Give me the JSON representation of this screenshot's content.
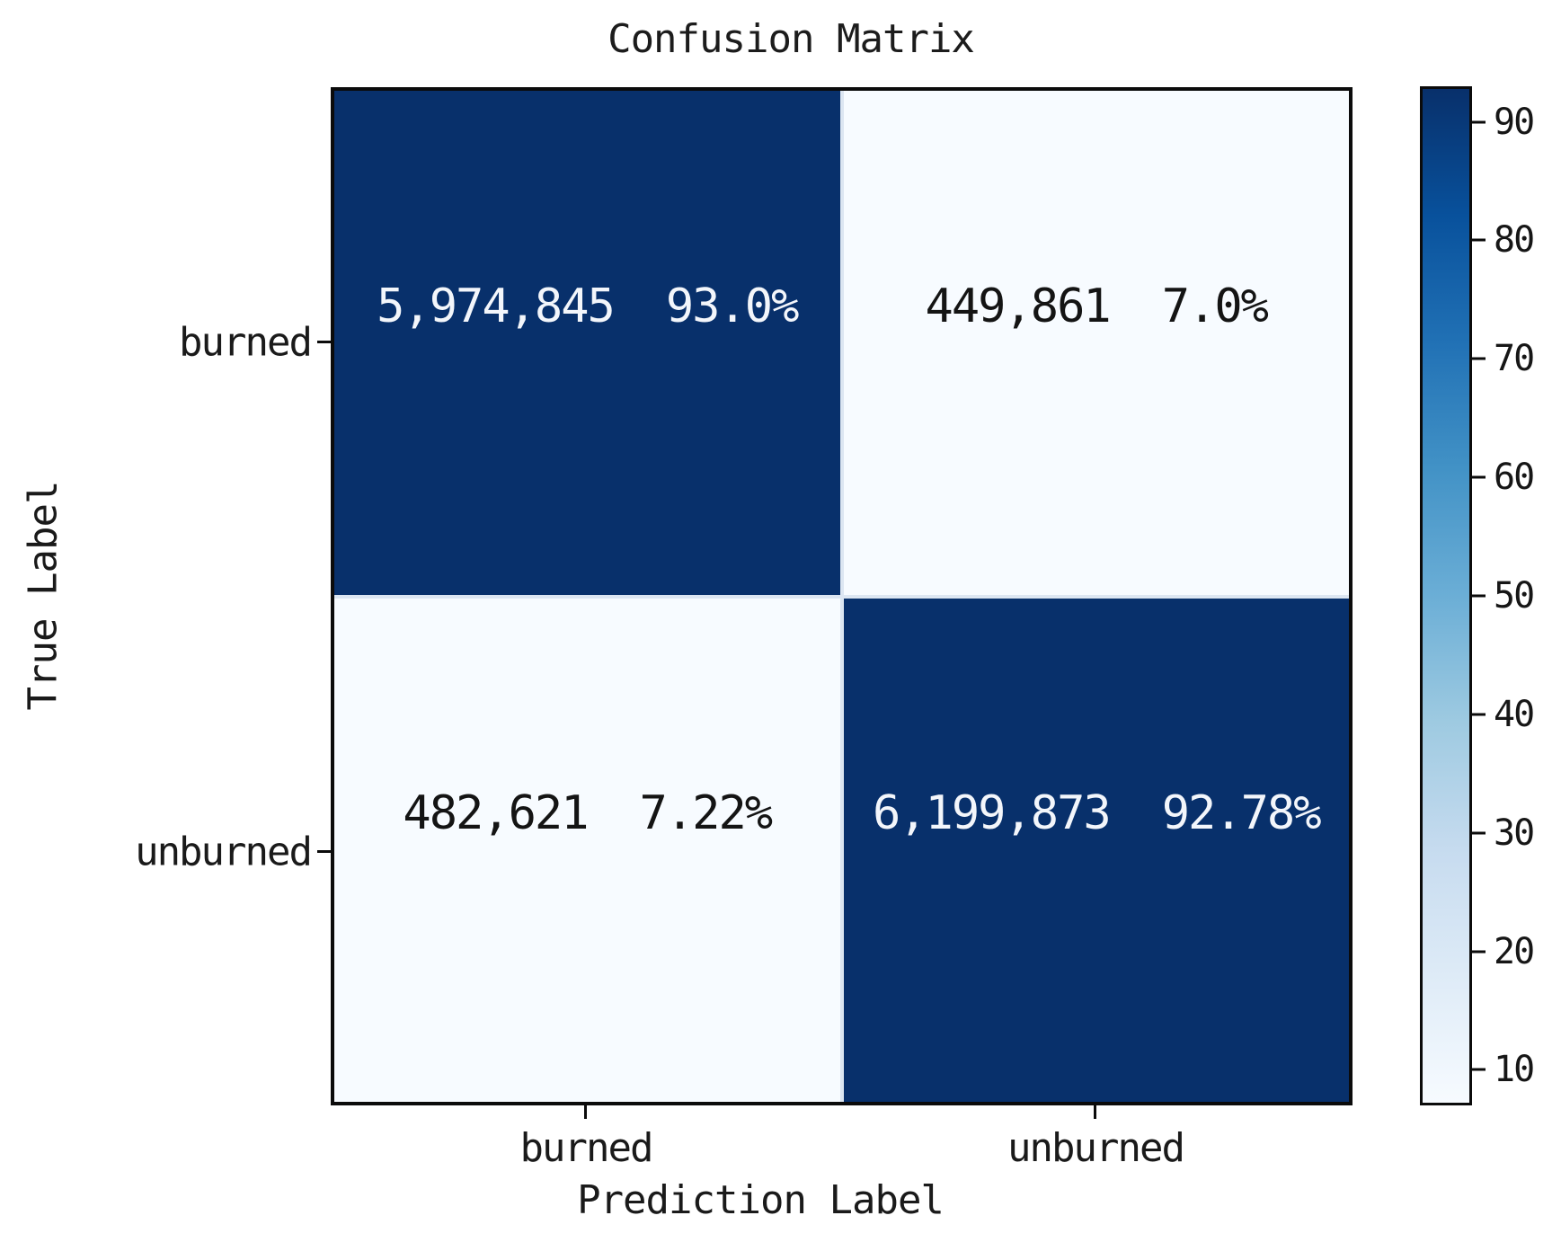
{
  "title": "Confusion Matrix",
  "axes": {
    "x_label": "Prediction Label",
    "y_label": "True Label"
  },
  "chart_data": {
    "type": "heatmap",
    "title": "Confusion Matrix",
    "xlabel": "Prediction Label",
    "ylabel": "True Label",
    "x_categories": [
      "burned",
      "unburned"
    ],
    "y_categories": [
      "burned",
      "unburned"
    ],
    "cells": [
      {
        "row": "burned",
        "col": "burned",
        "count": "5,974,845",
        "percent": "93.0%",
        "value": 93.0
      },
      {
        "row": "burned",
        "col": "unburned",
        "count": "449,861",
        "percent": "7.0%",
        "value": 7.0
      },
      {
        "row": "unburned",
        "col": "burned",
        "count": "482,621",
        "percent": "7.22%",
        "value": 7.22
      },
      {
        "row": "unburned",
        "col": "unburned",
        "count": "6,199,873",
        "percent": "92.78%",
        "value": 92.78
      }
    ],
    "colormap": "Blues",
    "colorbar": {
      "ticks": [
        90,
        80,
        70,
        60,
        50,
        40,
        30,
        20,
        10
      ],
      "vmin": 7.0,
      "vmax": 93.0,
      "gradient_top_to_bottom": [
        "#08306b",
        "#08519c",
        "#2171b5",
        "#4292c6",
        "#6baed6",
        "#9ecae1",
        "#c6dbef",
        "#deebf7",
        "#f7fbff"
      ]
    },
    "colors": {
      "dark_cell": "#08306b",
      "light_cell": "#f7fbff",
      "dark_cell_text": "#f3f6fb",
      "light_cell_text": "#141414",
      "gridline": "#dce6f2"
    },
    "legend_position": "right-colorbar",
    "grid": false
  }
}
